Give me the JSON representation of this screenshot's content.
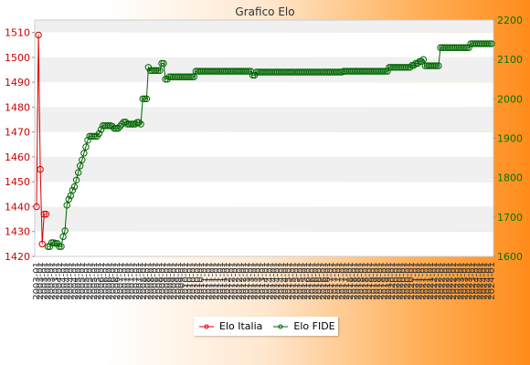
{
  "chart_data": {
    "type": "line",
    "title": "Grafico Elo",
    "y_left": {
      "min": 1420,
      "max": 1515,
      "ticks": [
        1420,
        1430,
        1440,
        1450,
        1460,
        1470,
        1480,
        1490,
        1500,
        1510
      ],
      "color": "#cc0000"
    },
    "y_right": {
      "min": 1600,
      "max": 2200,
      "ticks": [
        1600,
        1700,
        1800,
        1900,
        2000,
        2100,
        2200
      ],
      "color": "#007700"
    },
    "grid": "horizontal-bands",
    "legend_position": "bottom",
    "x_labels": [
      "2003-01",
      "2004-01",
      "2005-01",
      "2006-01",
      "2007-01",
      "2008-01",
      "2009-01",
      "2010-01",
      "2011-01",
      "2012-01",
      "2013-01",
      "2014-01",
      "2015-01",
      "2016-01",
      "2017-01",
      "2018-01",
      "2019-01",
      "2020-01",
      "2021-01",
      "2022-01",
      "2023-01",
      "2024-01"
    ],
    "series": [
      {
        "name": "Elo Italia",
        "axis": "left",
        "color": "#dd0000",
        "values": [
          1440,
          1509,
          1455,
          1425,
          1437,
          1437
        ]
      },
      {
        "name": "Elo FIDE",
        "axis": "right",
        "color": "#006600",
        "values": [
          null,
          null,
          null,
          null,
          null,
          null,
          1625,
          1625,
          1635,
          1635,
          1633,
          1633,
          1625,
          1625,
          1650,
          1665,
          1730,
          1745,
          1754,
          1768,
          1777,
          1794,
          1813,
          1830,
          1845,
          1862,
          1878,
          1895,
          1905,
          1905,
          1905,
          1905,
          1905,
          1912,
          1922,
          1932,
          1932,
          1932,
          1932,
          1932,
          1930,
          1925,
          1925,
          1925,
          1930,
          1936,
          1941,
          1941,
          1936,
          1936,
          1936,
          1936,
          1936,
          1940,
          1940,
          1936,
          2000,
          2000,
          2000,
          2080,
          2072,
          2072,
          2072,
          2072,
          2072,
          2072,
          2090,
          2090,
          2050,
          2050,
          2056,
          2056,
          2056,
          2056,
          2056,
          2056,
          2056,
          2056,
          2056,
          2056,
          2056,
          2056,
          2056,
          2056,
          2070,
          2070,
          2070,
          2070,
          2070,
          2070,
          2070,
          2070,
          2070,
          2070,
          2070,
          2070,
          2070,
          2070,
          2070,
          2070,
          2070,
          2070,
          2070,
          2070,
          2070,
          2070,
          2070,
          2070,
          2070,
          2070,
          2070,
          2070,
          2070,
          2070,
          2060,
          2060,
          2068,
          2068,
          2068,
          2068,
          2068,
          2068,
          2068,
          2068,
          2068,
          2068,
          2068,
          2068,
          2068,
          2068,
          2068,
          2068,
          2068,
          2068,
          2068,
          2068,
          2068,
          2068,
          2068,
          2068,
          2068,
          2068,
          2068,
          2068,
          2068,
          2068,
          2068,
          2068,
          2068,
          2068,
          2068,
          2068,
          2068,
          2068,
          2068,
          2068,
          2068,
          2068,
          2068,
          2068,
          2068,
          2068,
          2070,
          2070,
          2070,
          2070,
          2070,
          2070,
          2070,
          2070,
          2070,
          2070,
          2070,
          2070,
          2070,
          2070,
          2070,
          2070,
          2070,
          2070,
          2070,
          2070,
          2070,
          2070,
          2070,
          2070,
          2080,
          2080,
          2080,
          2080,
          2080,
          2080,
          2080,
          2080,
          2080,
          2080,
          2080,
          2080,
          2085,
          2085,
          2090,
          2090,
          2095,
          2095,
          2100,
          2084,
          2084,
          2084,
          2084,
          2084,
          2084,
          2084,
          2084,
          2130,
          2130,
          2130,
          2130,
          2130,
          2130,
          2130,
          2130,
          2130,
          2130,
          2130,
          2130,
          2130,
          2130,
          2130,
          2130,
          2140,
          2140,
          2140,
          2140,
          2140,
          2140,
          2140,
          2140,
          2140,
          2140,
          2140,
          2140
        ]
      }
    ]
  },
  "legend": {
    "items": [
      {
        "label": "Elo Italia",
        "color": "#dd0000"
      },
      {
        "label": "Elo FIDE",
        "color": "#006600"
      }
    ]
  }
}
